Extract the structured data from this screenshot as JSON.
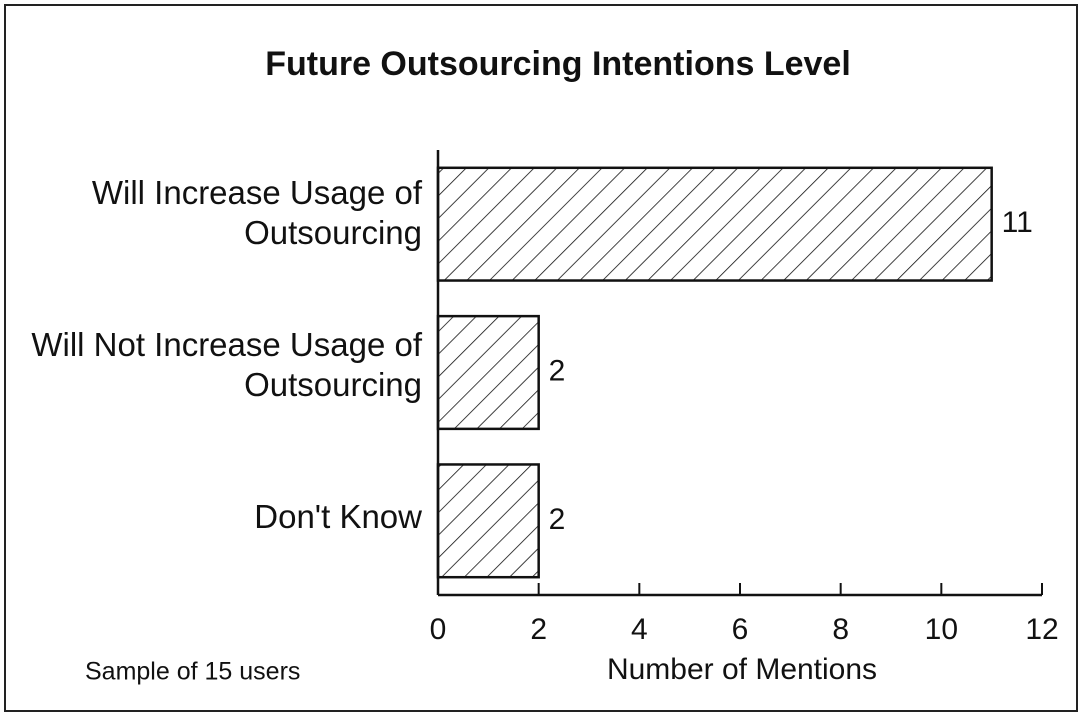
{
  "chart_data": {
    "type": "bar",
    "orientation": "horizontal",
    "title": "Future Outsourcing Intentions Level",
    "categories": [
      "Will Increase Usage of Outsourcing",
      "Will Not Increase Usage of Outsourcing",
      "Don't Know"
    ],
    "values": [
      11,
      2,
      2
    ],
    "color": "#111111",
    "pattern": "hatch",
    "xlim": [
      0,
      12
    ],
    "xticks": [
      0,
      2,
      4,
      6,
      8,
      10,
      12
    ],
    "xlabel": "Number of Mentions",
    "annotation": "Sample of 15 users",
    "grid": false
  }
}
